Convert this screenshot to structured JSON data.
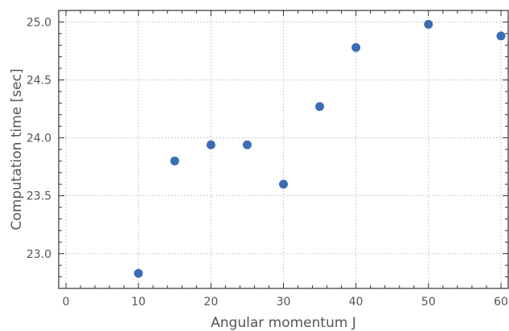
{
  "chart_data": {
    "type": "scatter",
    "xlabel": "Angular momentum J",
    "ylabel": "Computation time [sec]",
    "xlim": [
      -1,
      61
    ],
    "ylim": [
      22.7,
      25.1
    ],
    "grid": true,
    "x_ticks": [
      0,
      10,
      20,
      30,
      40,
      50,
      60
    ],
    "y_ticks": [
      23.0,
      23.5,
      24.0,
      24.5,
      25.0
    ],
    "x_tick_labels": [
      "0",
      "10",
      "20",
      "30",
      "40",
      "50",
      "60"
    ],
    "y_tick_labels": [
      "23.0",
      "23.5",
      "24.0",
      "24.5",
      "25.0"
    ],
    "series": [
      {
        "color": "#3b6db3",
        "x": [
          10,
          15,
          20,
          25,
          30,
          35,
          40,
          50,
          60
        ],
        "y": [
          22.83,
          23.8,
          23.94,
          23.94,
          23.6,
          24.27,
          24.78,
          24.98,
          24.88
        ]
      }
    ]
  }
}
